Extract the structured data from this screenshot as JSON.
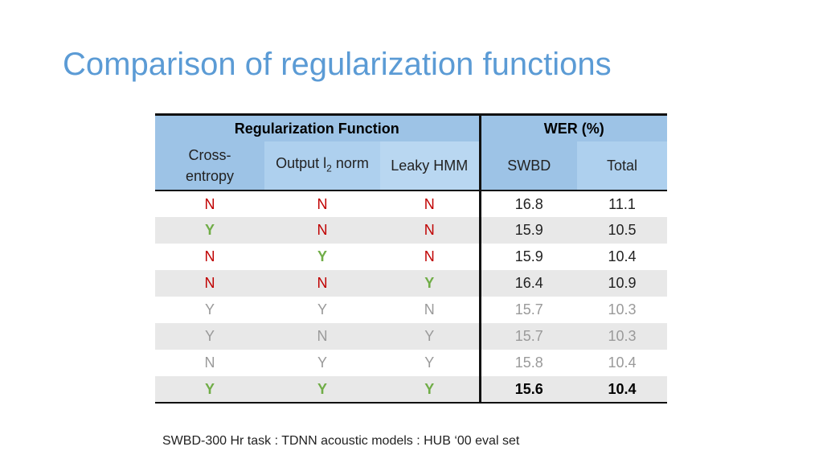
{
  "title": "Comparison of regularization functions",
  "table": {
    "group_headers": {
      "regularization": "Regularization Function",
      "wer": "WER (%)"
    },
    "col_headers": {
      "cross_entropy": "Cross-entropy",
      "output_norm_prefix": "Output l",
      "output_norm_sub": "2",
      "output_norm_suffix": " norm",
      "leaky_hmm": "Leaky HMM",
      "swbd": "SWBD",
      "total": "Total"
    },
    "rows": [
      {
        "ce": "N",
        "l2": "N",
        "leaky": "N",
        "swbd": "16.8",
        "total": "11.1"
      },
      {
        "ce": "Y",
        "l2": "N",
        "leaky": "N",
        "swbd": "15.9",
        "total": "10.5"
      },
      {
        "ce": "N",
        "l2": "Y",
        "leaky": "N",
        "swbd": "15.9",
        "total": "10.4"
      },
      {
        "ce": "N",
        "l2": "N",
        "leaky": "Y",
        "swbd": "16.4",
        "total": "10.9"
      },
      {
        "ce": "Y",
        "l2": "Y",
        "leaky": "N",
        "swbd": "15.7",
        "total": "10.3"
      },
      {
        "ce": "Y",
        "l2": "N",
        "leaky": "Y",
        "swbd": "15.7",
        "total": "10.3"
      },
      {
        "ce": "N",
        "l2": "Y",
        "leaky": "Y",
        "swbd": "15.8",
        "total": "10.4"
      },
      {
        "ce": "Y",
        "l2": "Y",
        "leaky": "Y",
        "swbd": "15.6",
        "total": "10.4"
      }
    ]
  },
  "colors": {
    "title": "#5b9bd5",
    "header_bg": "#9dc3e6",
    "no": "#c00000",
    "yes": "#70ad47",
    "muted": "#9a9a9a"
  },
  "footnote": "SWBD-300 Hr task : TDNN acoustic models : HUB ‘00 eval set"
}
